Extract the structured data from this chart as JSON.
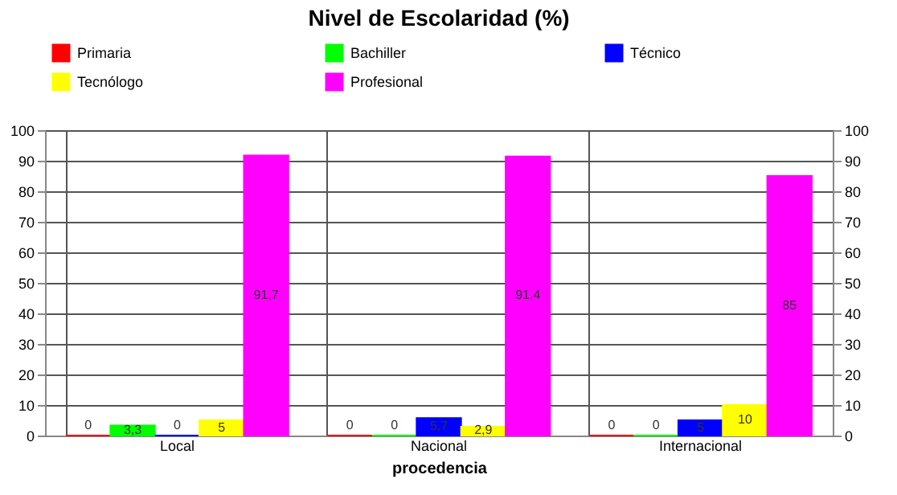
{
  "chart_data": {
    "type": "bar",
    "title": "Nivel de Escolaridad (%)",
    "xlabel": "procedencia",
    "categories": [
      "Local",
      "Nacional",
      "Internacional"
    ],
    "series": [
      {
        "name": "Primaria",
        "color": "#ff0000",
        "values": [
          0,
          0,
          0
        ],
        "value_labels": [
          "0",
          "0",
          "0"
        ]
      },
      {
        "name": "Bachiller",
        "color": "#00ff00",
        "values": [
          3.3,
          0,
          0
        ],
        "value_labels": [
          "3,3",
          "0",
          "0"
        ]
      },
      {
        "name": "Técnico",
        "color": "#0000ff",
        "values": [
          0,
          5.7,
          5
        ],
        "value_labels": [
          "0",
          "5,7",
          "5"
        ]
      },
      {
        "name": "Tecnólogo",
        "color": "#ffff00",
        "values": [
          5,
          2.9,
          10
        ],
        "value_labels": [
          "5",
          "2,9",
          "10"
        ]
      },
      {
        "name": "Profesional",
        "color": "#ff00ff",
        "values": [
          91.7,
          91.4,
          85
        ],
        "value_labels": [
          "91,7",
          "91,4",
          "85"
        ]
      }
    ],
    "ylim": [
      0,
      100
    ],
    "yticks": [
      0,
      10,
      20,
      30,
      40,
      50,
      60,
      70,
      80,
      90,
      100
    ],
    "y2lim": [
      0,
      100
    ],
    "y2ticks": [
      0,
      10,
      20,
      30,
      40,
      50,
      60,
      70,
      80,
      90,
      100
    ],
    "grid": "y",
    "legend": "top"
  }
}
